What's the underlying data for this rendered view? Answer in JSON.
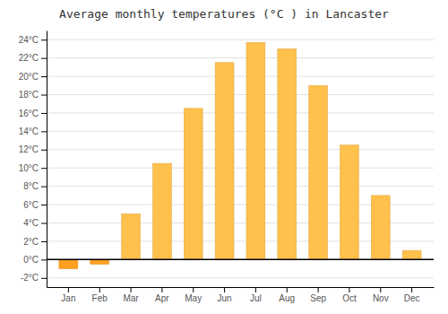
{
  "chart_data": {
    "type": "bar",
    "title": "Average monthly temperatures (°C ) in Lancaster",
    "categories": [
      "Jan",
      "Feb",
      "Mar",
      "Apr",
      "May",
      "Jun",
      "Jul",
      "Aug",
      "Sep",
      "Oct",
      "Nov",
      "Dec"
    ],
    "values": [
      -1.0,
      -0.5,
      5.0,
      10.5,
      16.5,
      21.5,
      23.7,
      23.0,
      19.0,
      12.5,
      7.0,
      1.0
    ],
    "colors": [
      "#FFA020",
      "#FFA020",
      "#FFC04C",
      "#FFC04C",
      "#FFC04C",
      "#FFC04C",
      "#FFC04C",
      "#FFC04C",
      "#FFC04C",
      "#FFC04C",
      "#FFC04C",
      "#FFC04C"
    ],
    "ylim": [
      -3,
      25
    ],
    "yticks": [
      {
        "value": -2,
        "label": "-2°C"
      },
      {
        "value": 0,
        "label": "0°C"
      },
      {
        "value": 2,
        "label": "2°C"
      },
      {
        "value": 4,
        "label": "4°C"
      },
      {
        "value": 6,
        "label": "6°C"
      },
      {
        "value": 8,
        "label": "8°C"
      },
      {
        "value": 10,
        "label": "10°C"
      },
      {
        "value": 12,
        "label": "12°C"
      },
      {
        "value": 14,
        "label": "14°C"
      },
      {
        "value": 16,
        "label": "16°C"
      },
      {
        "value": 18,
        "label": "18°C"
      },
      {
        "value": 20,
        "label": "20°C"
      },
      {
        "value": 22,
        "label": "22°C"
      },
      {
        "value": 24,
        "label": "24°C"
      }
    ],
    "grid": true
  }
}
